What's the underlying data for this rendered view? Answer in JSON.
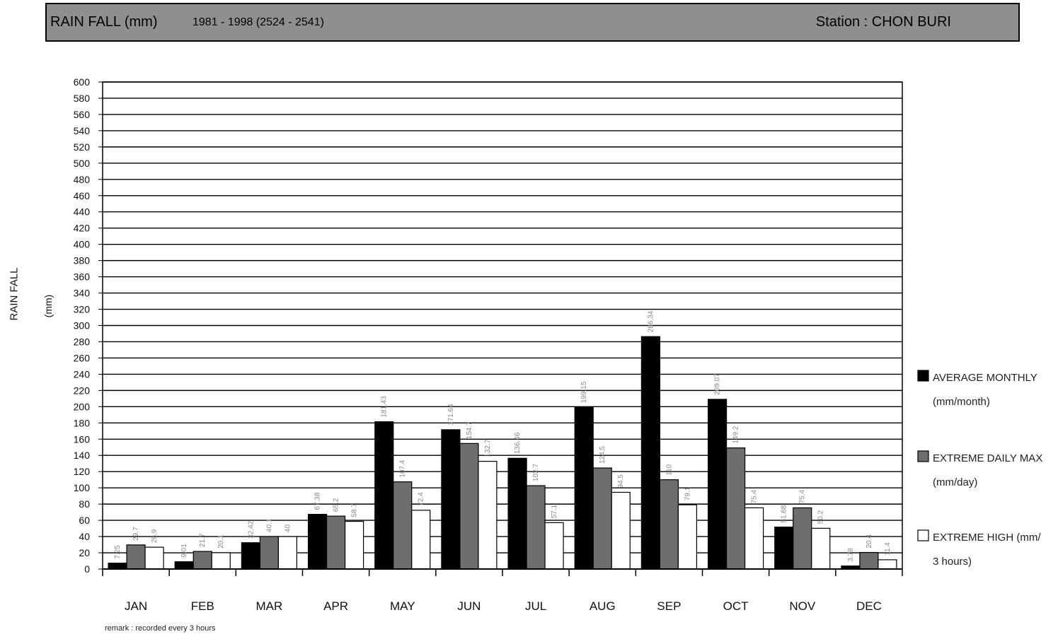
{
  "header": {
    "title": "RAIN FALL (mm)",
    "period": "1981 - 1998 (2524 - 2541)",
    "station": "Station  : CHON BURI"
  },
  "axis": {
    "ylabel": "RAIN FALL",
    "ylabel_unit": "(mm)"
  },
  "remark": "remark : recorded every 3 hours",
  "colors": {
    "average": "#000000",
    "daily_max": "#6e6e6e",
    "high_3h": "#ffffff",
    "header_bg": "#8f8f8f"
  },
  "chart_data": {
    "type": "bar",
    "title": "RAIN FALL (mm)",
    "ylabel": "RAIN FALL (mm)",
    "ylim": [
      0,
      600
    ],
    "ytick_step": 20,
    "grid": true,
    "legend_position": "right",
    "categories": [
      "JAN",
      "FEB",
      "MAR",
      "APR",
      "MAY",
      "JUN",
      "JUL",
      "AUG",
      "SEP",
      "OCT",
      "NOV",
      "DEC"
    ],
    "series": [
      {
        "name": "AVERAGE MONTHLY (mm/month)",
        "legend_lines": [
          "AVERAGE MONTHLY",
          "(mm/month)"
        ],
        "color": "#000000",
        "values": [
          7.25,
          9.01,
          32.42,
          67.38,
          181.43,
          171.64,
          136.46,
          199.15,
          286.34,
          209.07,
          51.68,
          3.78
        ],
        "labels": [
          "7.25",
          "9.01",
          "32.42",
          "67.38",
          "181.43",
          "171.64",
          "136.46",
          "199.15",
          "286.34",
          "209.07",
          "51.68",
          "3.78"
        ]
      },
      {
        "name": "EXTREME DAILY MAX (mm/day)",
        "legend_lines": [
          " EXTREME DAILY MAX",
          "(mm/day)"
        ],
        "color": "#6e6e6e",
        "values": [
          29.7,
          21.7,
          40.1,
          65.2,
          107.4,
          154.7,
          102.7,
          124.5,
          110,
          149.2,
          75.4,
          20.4
        ],
        "labels": [
          "29.7",
          "21.7",
          "40.1",
          "65.2",
          "107.4",
          "154.7",
          "102.7",
          "124.5",
          "110",
          "149.2",
          "75.4",
          "20.4"
        ]
      },
      {
        "name": "EXTREME HIGH (mm/3 hours)",
        "legend_lines": [
          "EXTREME  HIGH (mm/",
          "3 hours)"
        ],
        "color": "#ffffff",
        "values": [
          26.9,
          20.1,
          40,
          58.7,
          72.4,
          132.7,
          57.1,
          94.5,
          79.1,
          75.4,
          50.2,
          11.4
        ],
        "labels": [
          "26.9",
          "20.1",
          "40",
          "58.7",
          "72.4",
          "132.7",
          "57.1",
          "94.5",
          "79.1",
          "75.4",
          "50.2",
          "11.4"
        ]
      }
    ]
  }
}
